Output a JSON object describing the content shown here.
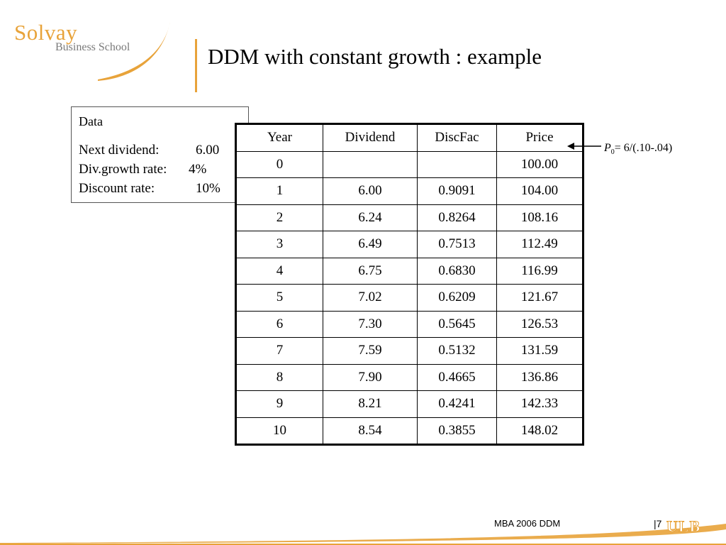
{
  "logo": {
    "line1": "Solvay",
    "line2": "Business School"
  },
  "title": "DDM with constant growth : example",
  "data_box": {
    "header": "Data",
    "rows": [
      {
        "label": "Next dividend:",
        "value": "6.00"
      },
      {
        "label": "Div.growth rate:",
        "value": "4%"
      },
      {
        "label": "Discount rate:",
        "value": "10%"
      }
    ]
  },
  "table": {
    "headers": [
      "Year",
      "Dividend",
      "DiscFac",
      "Price"
    ],
    "rows": [
      [
        "0",
        "",
        "",
        "100.00"
      ],
      [
        "1",
        "6.00",
        "0.9091",
        "104.00"
      ],
      [
        "2",
        "6.24",
        "0.8264",
        "108.16"
      ],
      [
        "3",
        "6.49",
        "0.7513",
        "112.49"
      ],
      [
        "4",
        "6.75",
        "0.6830",
        "116.99"
      ],
      [
        "5",
        "7.02",
        "0.6209",
        "121.67"
      ],
      [
        "6",
        "7.30",
        "0.5645",
        "126.53"
      ],
      [
        "7",
        "7.59",
        "0.5132",
        "131.59"
      ],
      [
        "8",
        "7.90",
        "0.4665",
        "136.86"
      ],
      [
        "9",
        "8.21",
        "0.4241",
        "142.33"
      ],
      [
        "10",
        "8.54",
        "0.3855",
        "148.02"
      ]
    ]
  },
  "formula": {
    "symbol": "P",
    "subscript": "0",
    "rest": "= 6/(.10-.04)"
  },
  "footer": {
    "text": "MBA 2006 DDM",
    "page": "|7",
    "brand": "ULB"
  },
  "colors": {
    "accent": "#e8a33a",
    "text": "#000000"
  }
}
